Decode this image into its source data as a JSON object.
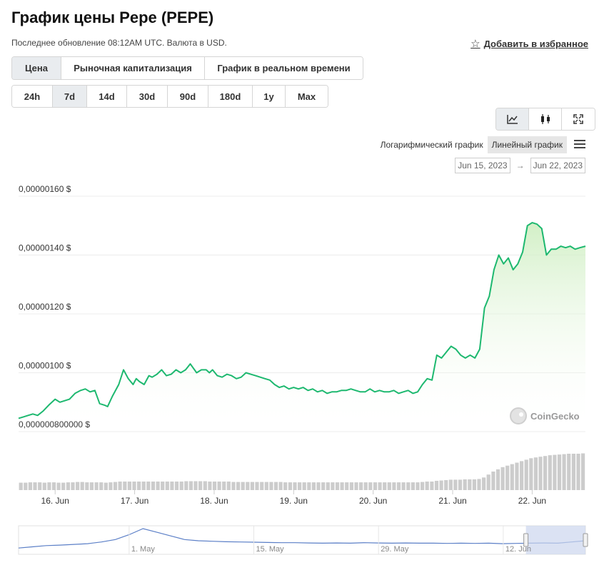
{
  "header": {
    "title": "График цены Pepe (PEPE)",
    "subtitle": "Последнее обновление 08:12AM UTC. Валюта в USD.",
    "favorite_label": "Добавить в избранное"
  },
  "tabs": [
    {
      "label": "Цена",
      "active": true
    },
    {
      "label": "Рыночная капитализация",
      "active": false
    },
    {
      "label": "График в реальном времени",
      "active": false
    }
  ],
  "ranges": [
    {
      "label": "24h",
      "active": false
    },
    {
      "label": "7d",
      "active": true
    },
    {
      "label": "14d",
      "active": false
    },
    {
      "label": "30d",
      "active": false
    },
    {
      "label": "90d",
      "active": false
    },
    {
      "label": "180d",
      "active": false
    },
    {
      "label": "1y",
      "active": false
    },
    {
      "label": "Max",
      "active": false
    }
  ],
  "view_buttons": [
    {
      "icon": "line-chart-icon",
      "active": true
    },
    {
      "icon": "candlestick-icon",
      "active": false
    },
    {
      "icon": "fullscreen-icon",
      "active": false
    }
  ],
  "scale": {
    "log_label": "Логарифмический график",
    "linear_label": "Линейный график",
    "selected": "linear"
  },
  "date_range": {
    "from": "Jun 15, 2023",
    "to": "Jun 22, 2023",
    "arrow": "→"
  },
  "credit": "CoinGecko",
  "colors": {
    "line": "#1db86f",
    "fill": "#d8f2cf",
    "volume": "#cccccc",
    "navigator_selection": "#ccd6ee"
  },
  "chart_data": {
    "type": "area",
    "ylim": [
      8e-08,
      1.6e-07
    ],
    "y_ticks": [
      {
        "value": 1.6e-07,
        "label": "0,00000160 $"
      },
      {
        "value": 1.4e-07,
        "label": "0,00000140 $"
      },
      {
        "value": 1.2e-07,
        "label": "0,00000120 $"
      },
      {
        "value": 1e-07,
        "label": "0,00000100 $"
      },
      {
        "value": 8e-08,
        "label": "0,000000800000 $"
      }
    ],
    "x_ticks": [
      "16. Jun",
      "17. Jun",
      "18. Jun",
      "19. Jun",
      "20. Jun",
      "21. Jun",
      "22. Jun"
    ],
    "x_tick_days": [
      1,
      2,
      3,
      4,
      5,
      6,
      7
    ],
    "x_domain_days": [
      0.54,
      7.67
    ],
    "series": [
      {
        "x": [
          0.54,
          0.6,
          0.66,
          0.72,
          0.78,
          0.85,
          0.92,
          1.0,
          1.06,
          1.12,
          1.18,
          1.25,
          1.32,
          1.38,
          1.44,
          1.5,
          1.56,
          1.62,
          1.66,
          1.72,
          1.8,
          1.86,
          1.92,
          1.98,
          2.02,
          2.06,
          2.12,
          2.18,
          2.22,
          2.28,
          2.34,
          2.4,
          2.46,
          2.52,
          2.58,
          2.64,
          2.7,
          2.78,
          2.84,
          2.9,
          2.94,
          2.98,
          3.04,
          3.1,
          3.16,
          3.22,
          3.28,
          3.34,
          3.4,
          3.46,
          3.52,
          3.58,
          3.64,
          3.7,
          3.76,
          3.82,
          3.88,
          3.94,
          4.0,
          4.06,
          4.12,
          4.18,
          4.24,
          4.3,
          4.36,
          4.42,
          4.48,
          4.54,
          4.6,
          4.66,
          4.72,
          4.78,
          4.84,
          4.9,
          4.96,
          5.02,
          5.08,
          5.14,
          5.2,
          5.26,
          5.32,
          5.38,
          5.44,
          5.5,
          5.56,
          5.62,
          5.68,
          5.74,
          5.8,
          5.86,
          5.92,
          5.98,
          6.04,
          6.1,
          6.16,
          6.22,
          6.28,
          6.34,
          6.4,
          6.46,
          6.52,
          6.58,
          6.64,
          6.7,
          6.76,
          6.82,
          6.88,
          6.94,
          7.0,
          7.06,
          7.12,
          7.18,
          7.24,
          7.3,
          7.36,
          7.42,
          7.48,
          7.54,
          7.6,
          7.67
        ],
        "values": [
          8.45e-08,
          8.5e-08,
          8.55e-08,
          8.6e-08,
          8.55e-08,
          8.7e-08,
          8.9e-08,
          9.1e-08,
          9e-08,
          9.05e-08,
          9.1e-08,
          9.3e-08,
          9.4e-08,
          9.45e-08,
          9.35e-08,
          9.4e-08,
          8.95e-08,
          8.9e-08,
          8.85e-08,
          9.2e-08,
          9.6e-08,
          1.01e-07,
          9.8e-08,
          9.6e-08,
          9.8e-08,
          9.7e-08,
          9.6e-08,
          9.9e-08,
          9.85e-08,
          9.95e-08,
          1.01e-07,
          9.9e-08,
          9.95e-08,
          1.01e-07,
          1e-07,
          1.01e-07,
          1.03e-07,
          1e-07,
          1.01e-07,
          1.01e-07,
          1e-07,
          1.01e-07,
          9.9e-08,
          9.85e-08,
          9.95e-08,
          9.9e-08,
          9.8e-08,
          9.85e-08,
          1e-07,
          9.95e-08,
          9.9e-08,
          9.85e-08,
          9.8e-08,
          9.75e-08,
          9.6e-08,
          9.5e-08,
          9.55e-08,
          9.45e-08,
          9.5e-08,
          9.45e-08,
          9.5e-08,
          9.4e-08,
          9.45e-08,
          9.35e-08,
          9.4e-08,
          9.3e-08,
          9.35e-08,
          9.35e-08,
          9.4e-08,
          9.4e-08,
          9.45e-08,
          9.4e-08,
          9.35e-08,
          9.35e-08,
          9.45e-08,
          9.35e-08,
          9.4e-08,
          9.35e-08,
          9.35e-08,
          9.4e-08,
          9.3e-08,
          9.35e-08,
          9.4e-08,
          9.3e-08,
          9.35e-08,
          9.6e-08,
          9.8e-08,
          9.75e-08,
          1.06e-07,
          1.05e-07,
          1.07e-07,
          1.09e-07,
          1.08e-07,
          1.06e-07,
          1.05e-07,
          1.06e-07,
          1.05e-07,
          1.08e-07,
          1.22e-07,
          1.26e-07,
          1.35e-07,
          1.4e-07,
          1.37e-07,
          1.39e-07,
          1.35e-07,
          1.37e-07,
          1.41e-07,
          1.5e-07,
          1.51e-07,
          1.505e-07,
          1.49e-07,
          1.4e-07,
          1.42e-07,
          1.42e-07,
          1.43e-07,
          1.425e-07,
          1.43e-07,
          1.42e-07,
          1.425e-07,
          1.43e-07
        ]
      }
    ],
    "volume_relative": [
      0.2,
      0.2,
      0.21,
      0.21,
      0.21,
      0.2,
      0.21,
      0.21,
      0.2,
      0.2,
      0.21,
      0.21,
      0.22,
      0.22,
      0.21,
      0.21,
      0.21,
      0.21,
      0.2,
      0.21,
      0.22,
      0.23,
      0.23,
      0.23,
      0.23,
      0.23,
      0.23,
      0.23,
      0.23,
      0.23,
      0.23,
      0.23,
      0.23,
      0.23,
      0.23,
      0.24,
      0.24,
      0.24,
      0.24,
      0.24,
      0.23,
      0.23,
      0.23,
      0.23,
      0.23,
      0.22,
      0.22,
      0.22,
      0.22,
      0.22,
      0.22,
      0.22,
      0.22,
      0.22,
      0.22,
      0.22,
      0.21,
      0.21,
      0.21,
      0.21,
      0.21,
      0.21,
      0.21,
      0.21,
      0.21,
      0.21,
      0.21,
      0.21,
      0.21,
      0.21,
      0.21,
      0.21,
      0.21,
      0.21,
      0.21,
      0.21,
      0.21,
      0.21,
      0.21,
      0.21,
      0.21,
      0.21,
      0.21,
      0.21,
      0.21,
      0.22,
      0.23,
      0.23,
      0.25,
      0.26,
      0.27,
      0.28,
      0.28,
      0.28,
      0.29,
      0.29,
      0.29,
      0.3,
      0.34,
      0.42,
      0.5,
      0.56,
      0.62,
      0.66,
      0.7,
      0.74,
      0.78,
      0.82,
      0.86,
      0.88,
      0.9,
      0.92,
      0.94,
      0.95,
      0.96,
      0.97,
      0.98,
      0.98,
      0.98,
      0.99
    ],
    "navigator": {
      "x_labels": [
        "1. May",
        "15. May",
        "29. May",
        "12. Jun"
      ],
      "values_relative": [
        0.2,
        0.25,
        0.3,
        0.32,
        0.35,
        0.38,
        0.45,
        0.55,
        0.75,
        1.0,
        0.85,
        0.7,
        0.55,
        0.5,
        0.48,
        0.46,
        0.45,
        0.44,
        0.43,
        0.42,
        0.42,
        0.41,
        0.4,
        0.41,
        0.4,
        0.42,
        0.41,
        0.4,
        0.41,
        0.4,
        0.4,
        0.39,
        0.4,
        0.39,
        0.4,
        0.38,
        0.39,
        0.4,
        0.41,
        0.4,
        0.45,
        0.5
      ],
      "selection_days_fraction": [
        0.895,
        1.0
      ]
    }
  }
}
